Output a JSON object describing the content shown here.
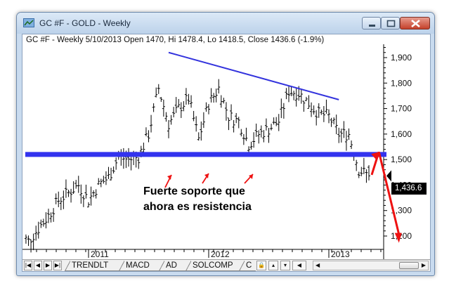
{
  "window": {
    "title": "GC #F - GOLD - Weekly",
    "controls": [
      "minimize",
      "maximize",
      "close"
    ]
  },
  "header": {
    "text": "GC #F - Weekly 5/10/2013 Open 1470, Hi 1478.4, Lo 1418.5, Close 1436.6 (-1.9%)"
  },
  "annotation": {
    "line1": "Fuerte soporte que",
    "line2": "ahora es resistencia"
  },
  "price_tag": "1,436.6",
  "tabs": [
    "TRENDLT",
    "MACD",
    "AD",
    "SOLCOMP",
    "C"
  ],
  "colors": {
    "bars": "#000000",
    "trendline": "#3333dd",
    "support": "#3333ee",
    "arrows": "#ee1111"
  },
  "chart_data": {
    "type": "ohlc",
    "title": "GC #F - Weekly",
    "x_ticks": [
      "2011",
      "2012",
      "2013"
    ],
    "y_ticks": [
      "1,200",
      "1,300",
      "1,400",
      "1,500",
      "1,600",
      "1,700",
      "1,800",
      "1,900"
    ],
    "ylim": [
      1150,
      1950
    ],
    "last": {
      "date": "5/10/2013",
      "open": 1470,
      "high": 1478.4,
      "low": 1418.5,
      "close": 1436.6,
      "change_pct": -1.9
    },
    "support_level": 1520,
    "trendline": {
      "from": {
        "date": "2011-09",
        "price": 1920
      },
      "to": {
        "date": "2013-02",
        "price": 1735
      }
    },
    "projection": [
      {
        "date": "2013-06",
        "price": 1530
      },
      {
        "date": "2013-08",
        "price": 1190
      }
    ],
    "series": {
      "dates": [
        "2010-06",
        "2010-07",
        "2010-08",
        "2010-09",
        "2010-10",
        "2010-11",
        "2010-12",
        "2011-01",
        "2011-02",
        "2011-03",
        "2011-04",
        "2011-05",
        "2011-06",
        "2011-07",
        "2011-08",
        "2011-09",
        "2011-10",
        "2011-11",
        "2011-12",
        "2012-01",
        "2012-02",
        "2012-03",
        "2012-04",
        "2012-05",
        "2012-06",
        "2012-07",
        "2012-08",
        "2012-09",
        "2012-10",
        "2012-11",
        "2012-12",
        "2013-01",
        "2013-02",
        "2013-03",
        "2013-04",
        "2013-05"
      ],
      "close": [
        1210,
        1180,
        1230,
        1280,
        1340,
        1370,
        1400,
        1340,
        1400,
        1430,
        1510,
        1500,
        1510,
        1600,
        1780,
        1640,
        1700,
        1740,
        1580,
        1720,
        1780,
        1670,
        1650,
        1560,
        1600,
        1620,
        1650,
        1770,
        1760,
        1720,
        1680,
        1670,
        1600,
        1600,
        1460,
        1436
      ]
    }
  }
}
